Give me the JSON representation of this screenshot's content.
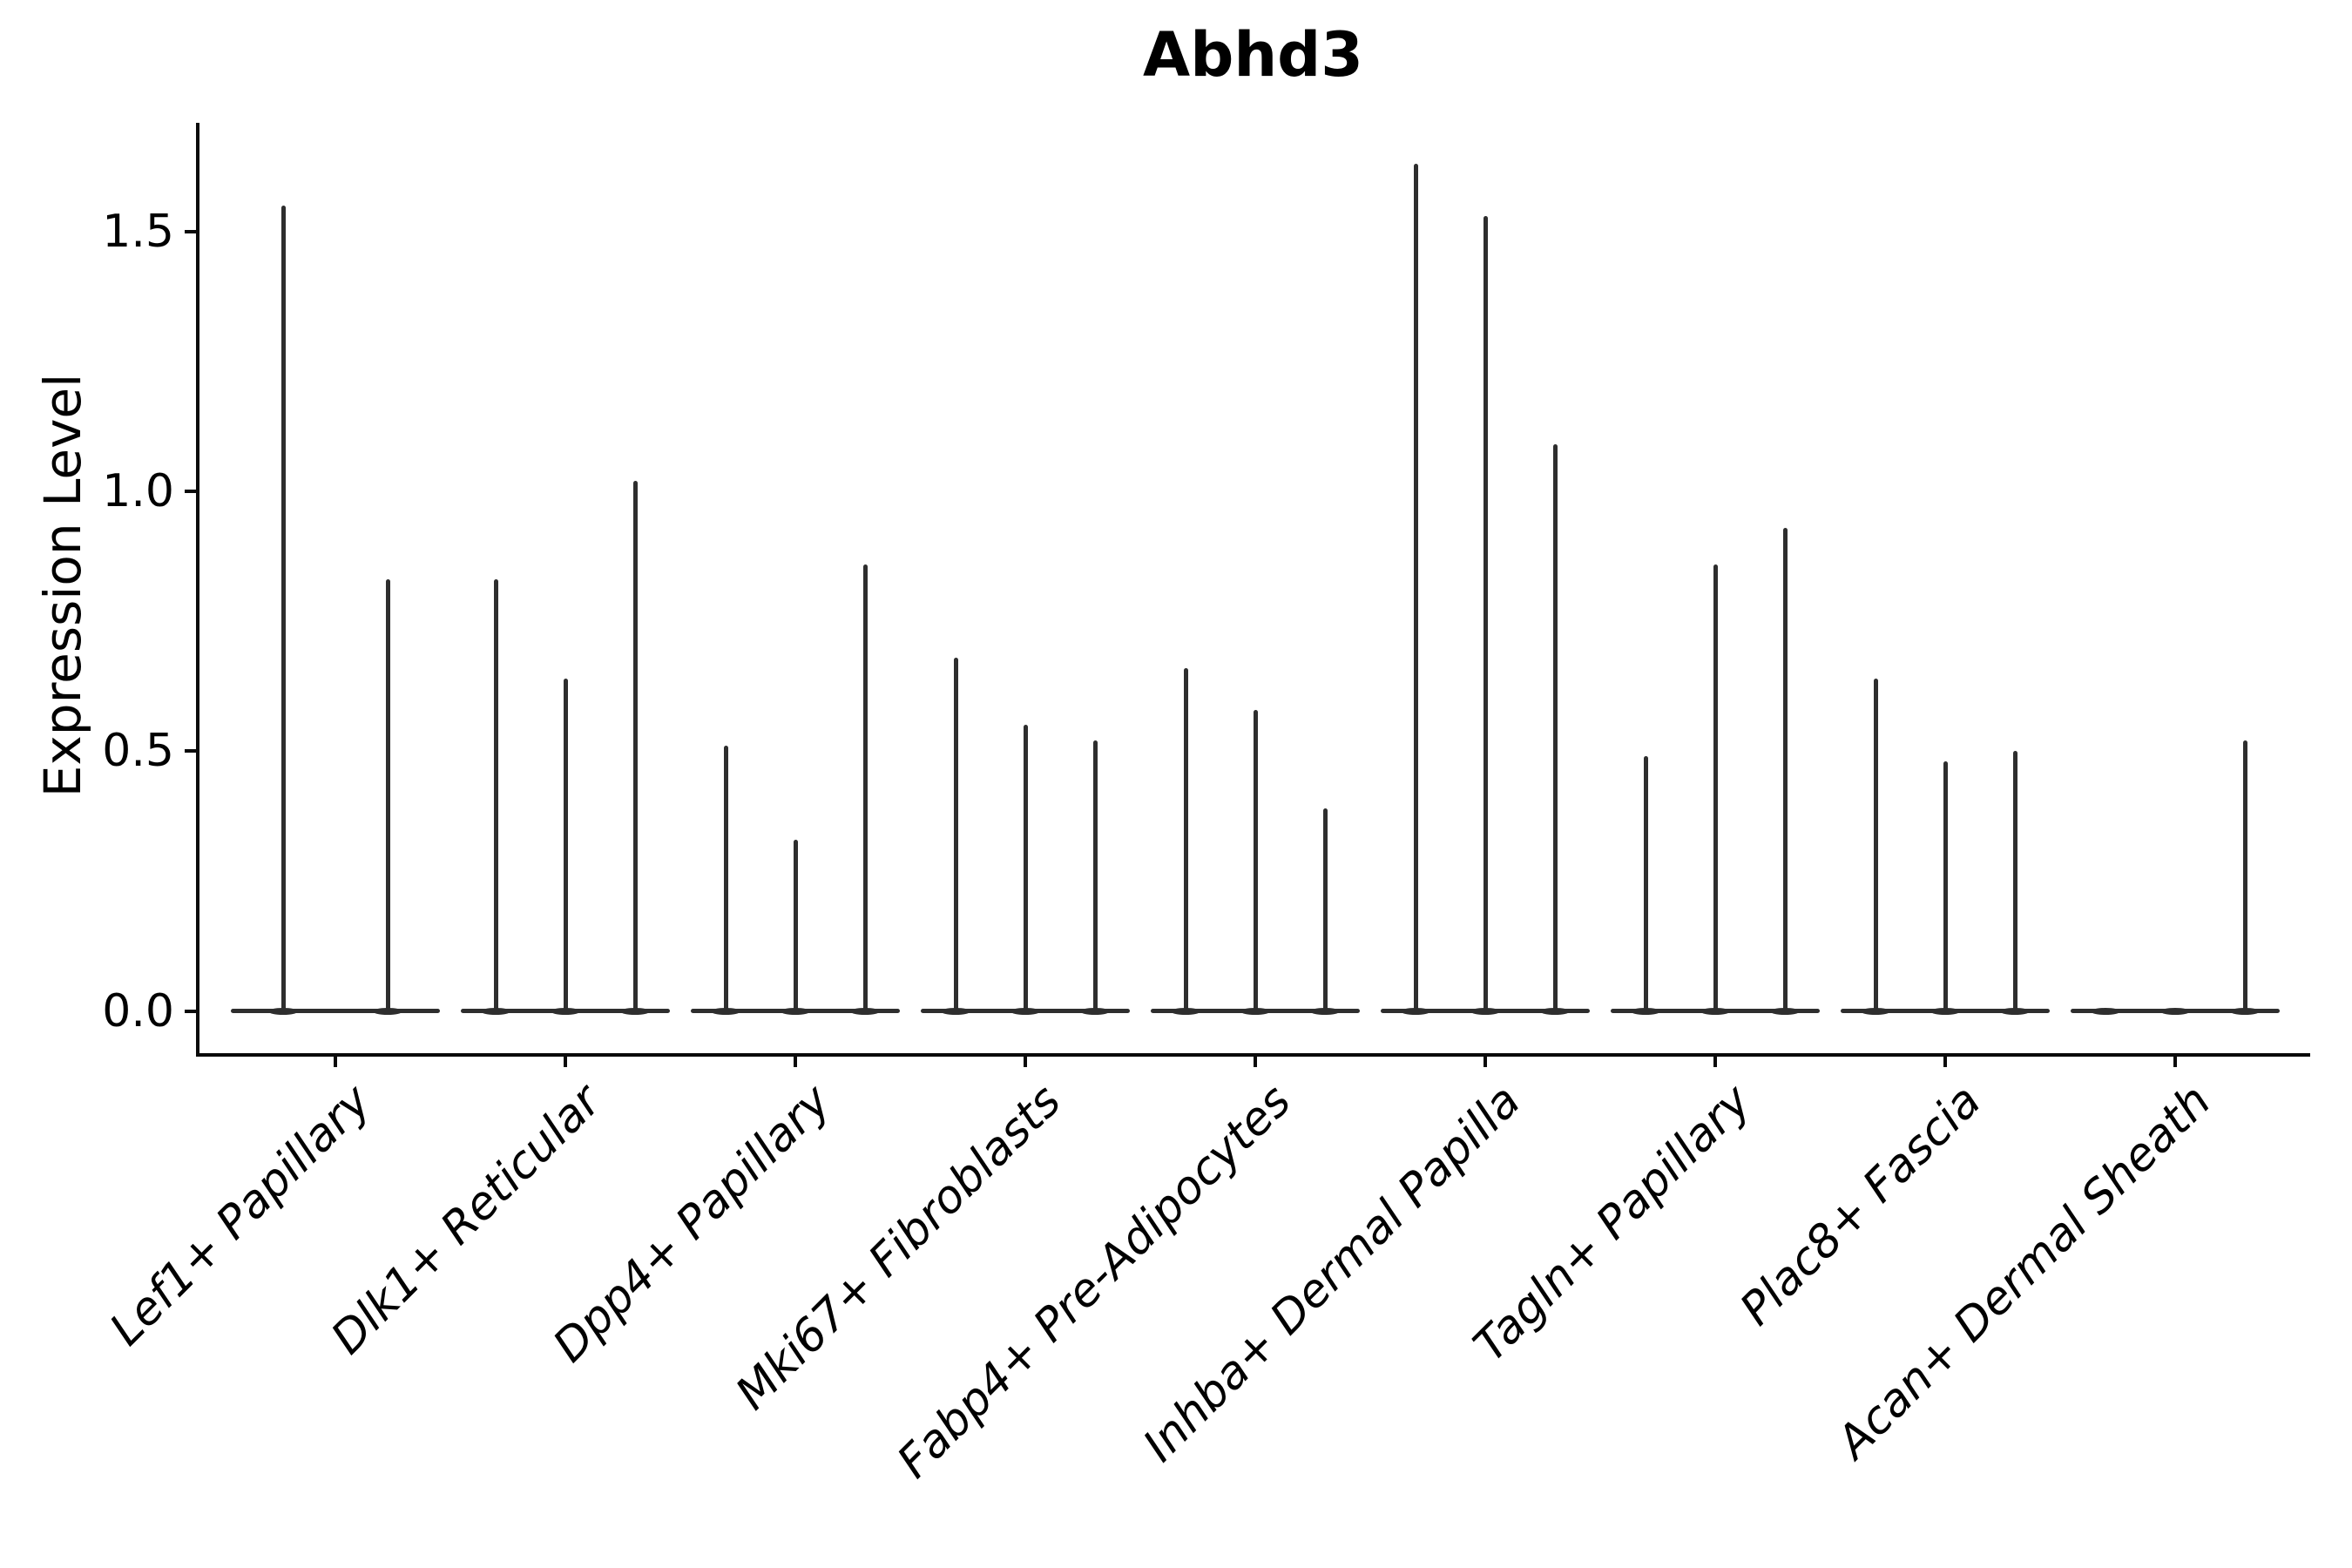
{
  "title": "Abhd3",
  "axes": {
    "ylabel": "Expression Level",
    "ytick_labels": [
      "0.0",
      "0.5",
      "1.0",
      "1.5"
    ]
  },
  "chart_data": {
    "type": "violin",
    "title": "Abhd3",
    "xlabel": "",
    "ylabel": "Expression Level",
    "ylim": [
      -0.08,
      1.71
    ],
    "yticks": [
      0.0,
      0.5,
      1.0,
      1.5
    ],
    "grid": false,
    "legend": null,
    "categories": [
      "Lef1+ Papillary",
      "Dlk1+ Reticular",
      "Dpp4+ Papillary",
      "Mki67+ Fibroblasts",
      "Fabp4+ Pre-Adipocytes",
      "Inhba+ Dermal Papilla",
      "Tagln+ Papillary",
      "Plac8+ Fascia",
      "Acan+ Dermal Sheath"
    ],
    "groups": [
      {
        "category": "Lef1+ Papillary",
        "violin_max_expression": [
          1.55,
          0.83
        ]
      },
      {
        "category": "Dlk1+ Reticular",
        "violin_max_expression": [
          0.83,
          0.64,
          1.02
        ]
      },
      {
        "category": "Dpp4+ Papillary",
        "violin_max_expression": [
          0.51,
          0.33,
          0.86
        ]
      },
      {
        "category": "Mki67+ Fibroblasts",
        "violin_max_expression": [
          0.68,
          0.55,
          0.52
        ]
      },
      {
        "category": "Fabp4+ Pre-Adipocytes",
        "violin_max_expression": [
          0.66,
          0.58,
          0.39
        ]
      },
      {
        "category": "Inhba+ Dermal Papilla",
        "violin_max_expression": [
          1.63,
          1.53,
          1.09
        ]
      },
      {
        "category": "Tagln+ Papillary",
        "violin_max_expression": [
          0.49,
          0.86,
          0.93
        ]
      },
      {
        "category": "Plac8+ Fascia",
        "violin_max_expression": [
          0.64,
          0.48,
          0.5
        ]
      },
      {
        "category": "Acan+ Dermal Sheath",
        "violin_max_expression": [
          0.0,
          0.0,
          0.52
        ]
      }
    ],
    "colors": {
      "violin_line": "#2e2e2e",
      "spine": "#0a0a0a",
      "text": "#000000",
      "background": "#ffffff"
    }
  }
}
